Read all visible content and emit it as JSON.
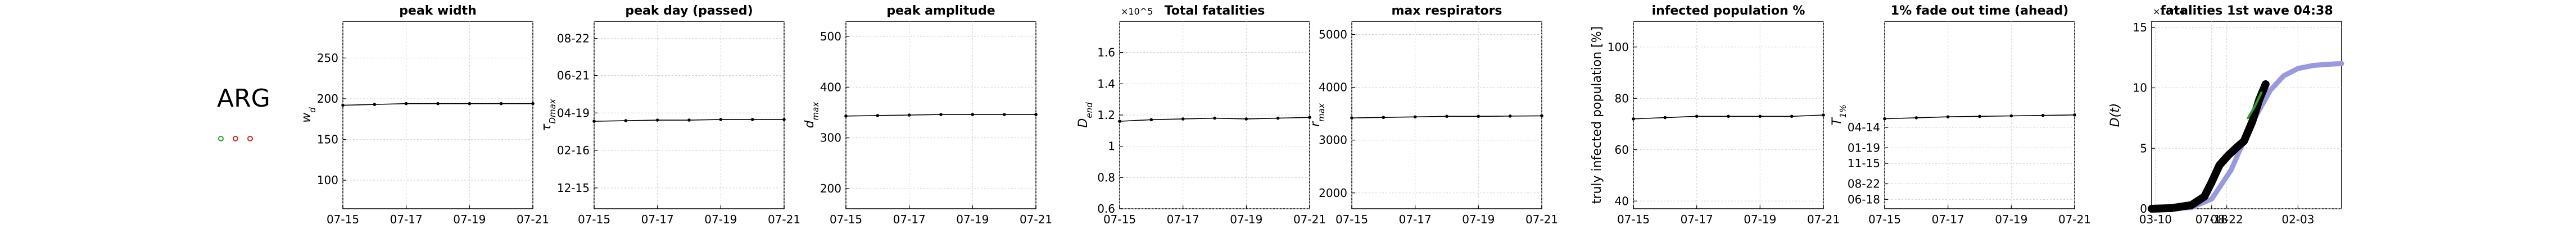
{
  "country": "ARG",
  "status_markers": [
    {
      "name": "green-circle-marker",
      "color": "#2ca02c"
    },
    {
      "name": "red-circle-marker",
      "color": "#d62728"
    },
    {
      "name": "red-circle-marker",
      "color": "#d62728"
    }
  ],
  "chart_data": [
    {
      "type": "line",
      "title": "peak width",
      "ylabel": "w_d",
      "ylabel_math": true,
      "x_ticks": [
        "07-15",
        "07-17",
        "07-19",
        "07-21"
      ],
      "y_ticks": [
        100,
        150,
        200,
        250
      ],
      "ylim": [
        65,
        295
      ],
      "x": [
        "07-15",
        "07-16",
        "07-17",
        "07-18",
        "07-19",
        "07-20",
        "07-21"
      ],
      "series": [
        {
          "values": [
            192,
            193,
            194,
            194,
            194,
            194,
            194
          ]
        }
      ]
    },
    {
      "type": "line",
      "title": "peak day (passed)",
      "ylabel": "τ_Dmax",
      "ylabel_math": true,
      "y_axis": "date",
      "x_ticks": [
        "07-15",
        "07-17",
        "07-19",
        "07-21"
      ],
      "y_ticks": [
        "12-15",
        "02-16",
        "04-19",
        "06-21",
        "08-22"
      ],
      "ylim": [
        "2019-11-10",
        "2020-09-20"
      ],
      "x": [
        "07-15",
        "07-16",
        "07-17",
        "07-18",
        "07-19",
        "07-20",
        "07-21"
      ],
      "series": [
        {
          "values": [
            "2020-04-05",
            "2020-04-06",
            "2020-04-07",
            "2020-04-07",
            "2020-04-08",
            "2020-04-08",
            "2020-04-08"
          ]
        }
      ]
    },
    {
      "type": "line",
      "title": "peak amplitude",
      "ylabel": "d_max",
      "ylabel_math": true,
      "x_ticks": [
        "07-15",
        "07-17",
        "07-19",
        "07-21"
      ],
      "y_ticks": [
        200,
        300,
        400,
        500
      ],
      "ylim": [
        160,
        530
      ],
      "x": [
        "07-15",
        "07-16",
        "07-17",
        "07-18",
        "07-19",
        "07-20",
        "07-21"
      ],
      "series": [
        {
          "values": [
            343,
            344,
            345,
            346,
            346,
            346,
            346
          ]
        }
      ]
    },
    {
      "type": "line",
      "title": "Total fatalities",
      "ylabel": "D_end",
      "ylabel_math": true,
      "axis_multiplier": "×10^5",
      "x_ticks": [
        "07-15",
        "07-17",
        "07-19",
        "07-21"
      ],
      "y_ticks": [
        0.6,
        0.8,
        1,
        1.2,
        1.4,
        1.6
      ],
      "ylim": [
        0.6,
        1.8
      ],
      "x": [
        "07-15",
        "07-16",
        "07-17",
        "07-18",
        "07-19",
        "07-20",
        "07-21"
      ],
      "series": [
        {
          "values": [
            1.16,
            1.17,
            1.175,
            1.18,
            1.175,
            1.18,
            1.185
          ]
        }
      ]
    },
    {
      "type": "line",
      "title": "max respirators",
      "ylabel": "r_max",
      "ylabel_math": true,
      "x_ticks": [
        "07-15",
        "07-17",
        "07-19",
        "07-21"
      ],
      "y_ticks": [
        2000,
        3000,
        4000,
        5000
      ],
      "ylim": [
        1700,
        5250
      ],
      "x": [
        "07-15",
        "07-16",
        "07-17",
        "07-18",
        "07-19",
        "07-20",
        "07-21"
      ],
      "series": [
        {
          "values": [
            3420,
            3430,
            3440,
            3450,
            3450,
            3455,
            3460
          ]
        }
      ]
    },
    {
      "type": "line",
      "title": "infected population %",
      "ylabel": "truly infected population [%]",
      "ylabel_math": false,
      "x_ticks": [
        "07-15",
        "07-17",
        "07-19",
        "07-21"
      ],
      "y_ticks": [
        40,
        60,
        80,
        100
      ],
      "ylim": [
        37,
        110
      ],
      "x": [
        "07-15",
        "07-16",
        "07-17",
        "07-18",
        "07-19",
        "07-20",
        "07-21"
      ],
      "series": [
        {
          "values": [
            72,
            72.5,
            73,
            73,
            73,
            73,
            73.5
          ]
        }
      ]
    },
    {
      "type": "line",
      "title": "1% fade out time (ahead)",
      "ylabel": "T_1%",
      "ylabel_math": true,
      "y_axis": "date",
      "x_ticks": [
        "07-15",
        "07-17",
        "07-19",
        "07-21"
      ],
      "y_ticks": [
        "08-22",
        "01-19",
        "06-18",
        "11-15",
        "04-14"
      ],
      "ylim": [
        "2020-05-10",
        "2022-06-30"
      ],
      "x": [
        "07-15",
        "07-16",
        "07-17",
        "07-18",
        "07-19",
        "07-20",
        "07-21"
      ],
      "series": [
        {
          "values": [
            "2021-05-20",
            "2021-05-24",
            "2021-05-28",
            "2021-05-30",
            "2021-06-01",
            "2021-06-03",
            "2021-06-05"
          ]
        }
      ]
    },
    {
      "type": "line",
      "title": "fatalities 1st wave 04:38",
      "ylabel": "D(t)",
      "ylabel_math": true,
      "axis_multiplier": "×10^4",
      "x_axis": "date",
      "x_ticks": [
        "07-18",
        "02-03",
        "08-22",
        "03-10"
      ],
      "y_ticks": [
        0,
        5,
        10,
        15
      ],
      "xlim": [
        "2020-03-01",
        "2021-05-15"
      ],
      "ylim": [
        0,
        15.5
      ],
      "series": [
        {
          "color": "#9999dd",
          "x": [
            "2020-03-01",
            "2020-06-01",
            "2020-07-18",
            "2020-09-01",
            "2020-10-15",
            "2020-12-01",
            "2021-01-01",
            "2021-02-03",
            "2021-03-10",
            "2021-04-15",
            "2021-05-15"
          ],
          "values": [
            0,
            0.1,
            0.8,
            3.2,
            6.8,
            9.8,
            11,
            11.6,
            11.85,
            11.95,
            12
          ]
        },
        {
          "color": "#000000",
          "x": [
            "2020-03-01",
            "2020-04-15",
            "2020-06-01",
            "2020-07-01",
            "2020-07-18",
            "2020-08-05",
            "2020-08-25",
            "2020-09-15",
            "2020-10-01",
            "2020-10-20",
            "2020-11-05",
            "2020-11-20"
          ],
          "values": [
            0,
            0.05,
            0.3,
            1.0,
            2.2,
            3.6,
            4.4,
            5.1,
            5.6,
            7.2,
            9.0,
            10.3
          ]
        },
        {
          "color": "#2ca02c",
          "x": [
            "2020-10-10",
            "2020-10-25",
            "2020-11-10"
          ],
          "values": [
            7.5,
            8.4,
            9.6
          ]
        }
      ]
    }
  ]
}
